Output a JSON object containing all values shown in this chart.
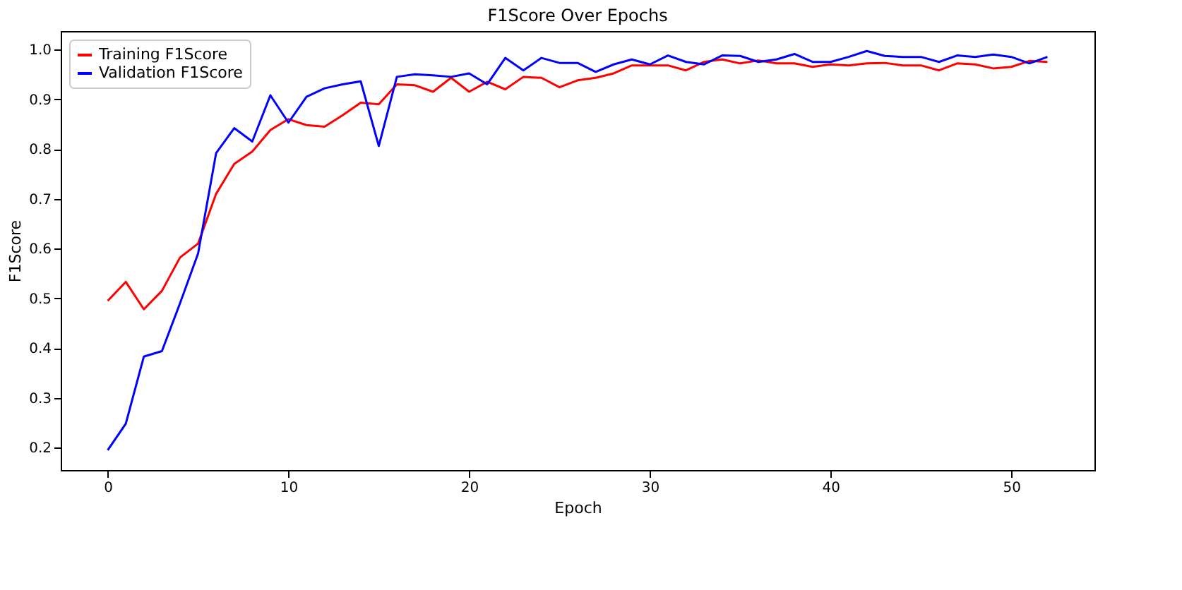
{
  "chart_data": {
    "type": "line",
    "title": "F1Score Over Epochs",
    "xlabel": "Epoch",
    "ylabel": "F1Score",
    "x": [
      0,
      1,
      2,
      3,
      4,
      5,
      6,
      7,
      8,
      9,
      10,
      11,
      12,
      13,
      14,
      15,
      16,
      17,
      18,
      19,
      20,
      21,
      22,
      23,
      24,
      25,
      26,
      27,
      28,
      29,
      30,
      31,
      32,
      33,
      34,
      35,
      36,
      37,
      38,
      39,
      40,
      41,
      42,
      43,
      44,
      45,
      46,
      47,
      48,
      49,
      50,
      51,
      52
    ],
    "series": [
      {
        "name": "Training F1Score",
        "color": "#ff0000",
        "values": [
          0.495,
          0.533,
          0.478,
          0.515,
          0.582,
          0.61,
          0.71,
          0.77,
          0.795,
          0.838,
          0.86,
          0.848,
          0.845,
          0.868,
          0.893,
          0.89,
          0.93,
          0.928,
          0.915,
          0.943,
          0.915,
          0.935,
          0.92,
          0.945,
          0.943,
          0.924,
          0.938,
          0.943,
          0.952,
          0.968,
          0.968,
          0.968,
          0.958,
          0.975,
          0.98,
          0.972,
          0.978,
          0.972,
          0.972,
          0.965,
          0.97,
          0.968,
          0.972,
          0.973,
          0.968,
          0.968,
          0.958,
          0.972,
          0.97,
          0.962,
          0.965,
          0.977,
          0.975
        ]
      },
      {
        "name": "Validation F1Score",
        "color": "#0000ff",
        "values": [
          0.195,
          0.248,
          0.383,
          0.394,
          0.49,
          0.59,
          0.792,
          0.842,
          0.815,
          0.908,
          0.853,
          0.905,
          0.922,
          0.93,
          0.936,
          0.806,
          0.945,
          0.95,
          0.948,
          0.945,
          0.952,
          0.93,
          0.983,
          0.958,
          0.983,
          0.973,
          0.973,
          0.955,
          0.97,
          0.98,
          0.97,
          0.988,
          0.975,
          0.97,
          0.988,
          0.987,
          0.975,
          0.98,
          0.991,
          0.975,
          0.975,
          0.985,
          0.997,
          0.987,
          0.985,
          0.985,
          0.975,
          0.988,
          0.985,
          0.99,
          0.985,
          0.972,
          0.985
        ]
      }
    ],
    "xlim": [
      -2.6,
      54.6
    ],
    "xticks": [
      0,
      10,
      20,
      30,
      40,
      50
    ],
    "ylim": [
      0.155,
      1.037
    ],
    "yticks": [
      0.2,
      0.3,
      0.4,
      0.5,
      0.6,
      0.7,
      0.8,
      0.9,
      {
        "value": 1,
        "label": "1.0"
      }
    ],
    "grid": false,
    "legend": "top left",
    "line_style": "solid",
    "marker": "none"
  }
}
